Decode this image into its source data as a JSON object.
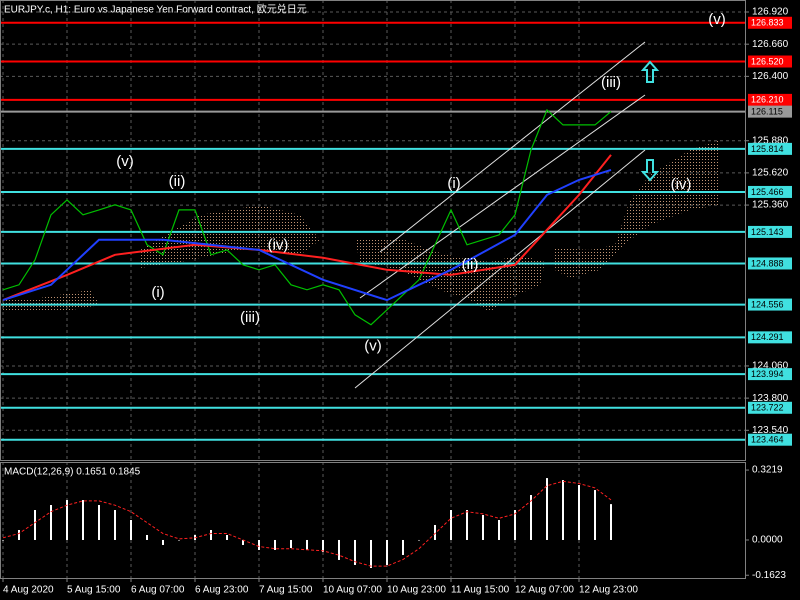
{
  "chart_data": [
    {
      "type": "line",
      "title": "EURJPY.c, H1:  Euro vs Japanese Yen Forward contract, 欧元兑日元",
      "xlim": [
        -0.75,
        185.5
      ],
      "xticks": [
        {
          "value": 0,
          "label": "4 Aug 2020"
        },
        {
          "value": 16,
          "label": "5 Aug 15:00"
        },
        {
          "value": 32,
          "label": "6 Aug 07:00"
        },
        {
          "value": 48,
          "label": "6 Aug 23:00"
        },
        {
          "value": 64,
          "label": "7 Aug 15:00"
        },
        {
          "value": 80,
          "label": "10 Aug 07:00"
        },
        {
          "value": 96,
          "label": "10 Aug 23:00"
        },
        {
          "value": 112,
          "label": "11 Aug 15:00"
        },
        {
          "value": 128,
          "label": "12 Aug 07:00"
        },
        {
          "value": 144,
          "label": "12 Aug 23:00"
        }
      ],
      "ylim": [
        123.3,
        127.017
      ],
      "yticks": [
        {
          "value": 126.92,
          "label": "126.920"
        },
        {
          "value": 126.66,
          "label": "126.660"
        },
        {
          "value": 126.4,
          "label": "126.400"
        },
        {
          "value": 125.88,
          "label": "125.880"
        },
        {
          "value": 125.62,
          "label": "125.620"
        },
        {
          "value": 125.36,
          "label": "125.360"
        },
        {
          "value": 124.06,
          "label": "124.060"
        },
        {
          "value": 123.8,
          "label": "123.800"
        },
        {
          "value": 123.54,
          "label": "123.540"
        }
      ],
      "grid": true,
      "series": [
        {
          "color": "#00c000",
          "x": [
            0,
            4,
            8,
            12,
            16,
            20,
            24,
            28,
            32,
            36,
            40,
            44,
            48,
            52,
            56,
            60,
            64,
            68,
            72,
            76,
            80,
            84,
            88,
            92,
            96,
            100,
            104,
            108,
            112,
            116,
            120,
            124,
            128,
            132,
            136,
            140,
            144,
            148,
            152
          ],
          "values": [
            124.675,
            124.716,
            124.917,
            125.281,
            125.402,
            125.281,
            125.321,
            125.362,
            125.321,
            125.039,
            124.958,
            125.321,
            125.321,
            124.958,
            124.998,
            124.877,
            124.837,
            124.877,
            124.716,
            124.675,
            124.716,
            124.675,
            124.473,
            124.393,
            124.514,
            124.635,
            124.756,
            125.039,
            125.321,
            125.039,
            125.079,
            125.119,
            125.281,
            125.806,
            126.129,
            126.008,
            126.008,
            126.008,
            126.115
          ]
        },
        {
          "color": "#ff2020",
          "x": [
            0,
            16,
            28,
            48,
            64,
            80,
            96,
            112,
            128,
            136,
            144,
            152
          ],
          "values": [
            124.592,
            124.796,
            124.958,
            125.039,
            124.998,
            124.934,
            124.837,
            124.796,
            124.877,
            125.16,
            125.442,
            125.765
          ]
        },
        {
          "color": "#2040ff",
          "x": [
            0,
            12,
            24,
            40,
            64,
            80,
            96,
            104,
            112,
            128,
            136,
            144,
            152
          ],
          "values": [
            124.592,
            124.716,
            125.079,
            125.079,
            124.998,
            124.756,
            124.592,
            124.716,
            124.837,
            125.119,
            125.442,
            125.563,
            125.644
          ]
        }
      ],
      "levels": [
        {
          "value": 126.833,
          "label": "126.833",
          "color": "#ff0000"
        },
        {
          "value": 126.52,
          "label": "126.520",
          "color": "#ff0000"
        },
        {
          "value": 126.21,
          "label": "126.210",
          "color": "#ff0000"
        },
        {
          "value": 126.115,
          "label": "126.115",
          "color": "#9a9a9a"
        },
        {
          "value": 125.814,
          "label": "125.814",
          "color": "#40e0e0"
        },
        {
          "value": 125.466,
          "label": "125.466",
          "color": "#40e0e0"
        },
        {
          "value": 125.143,
          "label": "125.143",
          "color": "#40e0e0"
        },
        {
          "value": 124.888,
          "label": "124.888",
          "color": "#40e0e0"
        },
        {
          "value": 124.556,
          "label": "124.556",
          "color": "#40e0e0"
        },
        {
          "value": 124.291,
          "label": "124.291",
          "color": "#40e0e0"
        },
        {
          "value": 123.994,
          "label": "123.994",
          "color": "#40e0e0"
        },
        {
          "value": 123.722,
          "label": "123.722",
          "color": "#40e0e0"
        },
        {
          "value": 123.464,
          "label": "123.464",
          "color": "#40e0e0"
        }
      ],
      "annotations": [
        {
          "text": "(v)",
          "x": 178.5,
          "y": 126.856
        },
        {
          "text": "(iii)",
          "x": 152,
          "y": 126.347
        },
        {
          "text": "(v)",
          "x": 30.5,
          "y": 125.709
        },
        {
          "text": "(ii)",
          "x": 43.5,
          "y": 125.547
        },
        {
          "text": "(i)",
          "x": 38.75,
          "y": 124.651
        },
        {
          "text": "(iii)",
          "x": 61.75,
          "y": 124.449
        },
        {
          "text": "(iv)",
          "x": 68.75,
          "y": 125.031
        },
        {
          "text": "(v)",
          "x": 92.5,
          "y": 124.215
        },
        {
          "text": "(i)",
          "x": 112.75,
          "y": 125.531
        },
        {
          "text": "(ii)",
          "x": 116.75,
          "y": 124.877
        },
        {
          "text": "(iv)",
          "x": 169.5,
          "y": 125.523
        }
      ]
    },
    {
      "type": "macd",
      "label": "MACD(12,26,9) 0.1651 0.1845",
      "ylim": [
        -0.175,
        0.359
      ],
      "yticks": [
        0.3219,
        {
          "value": 0,
          "label": "0.0000"
        },
        -0.1623
      ],
      "x": [
        0,
        4,
        8,
        12,
        16,
        20,
        24,
        28,
        32,
        36,
        40,
        44,
        48,
        52,
        56,
        60,
        64,
        68,
        72,
        76,
        80,
        84,
        88,
        92,
        96,
        100,
        104,
        108,
        112,
        116,
        120,
        124,
        128,
        132,
        136,
        140,
        144,
        148,
        152
      ],
      "histogram": {
        "color": "#ffffff",
        "values": [
          0,
          0.046,
          0.138,
          0.161,
          0.184,
          0.184,
          0.161,
          0.138,
          0.092,
          0.023,
          -0.023,
          0,
          0.023,
          0.046,
          0.023,
          -0.023,
          -0.046,
          -0.046,
          -0.037,
          -0.046,
          -0.055,
          -0.092,
          -0.115,
          -0.129,
          -0.115,
          -0.069,
          0,
          0.069,
          0.138,
          0.138,
          0.115,
          0.092,
          0.138,
          0.207,
          0.285,
          0.276,
          0.253,
          0.23,
          0.1651
        ]
      },
      "signal": {
        "color": "#ff2020",
        "values": [
          0.01,
          0.03,
          0.08,
          0.13,
          0.16,
          0.18,
          0.18,
          0.16,
          0.13,
          0.08,
          0.03,
          0.005,
          0.01,
          0.03,
          0.03,
          0,
          -0.03,
          -0.04,
          -0.04,
          -0.045,
          -0.05,
          -0.07,
          -0.1,
          -0.12,
          -0.12,
          -0.09,
          -0.04,
          0.03,
          0.1,
          0.13,
          0.12,
          0.1,
          0.12,
          0.18,
          0.25,
          0.27,
          0.26,
          0.24,
          0.1845
        ]
      }
    }
  ]
}
